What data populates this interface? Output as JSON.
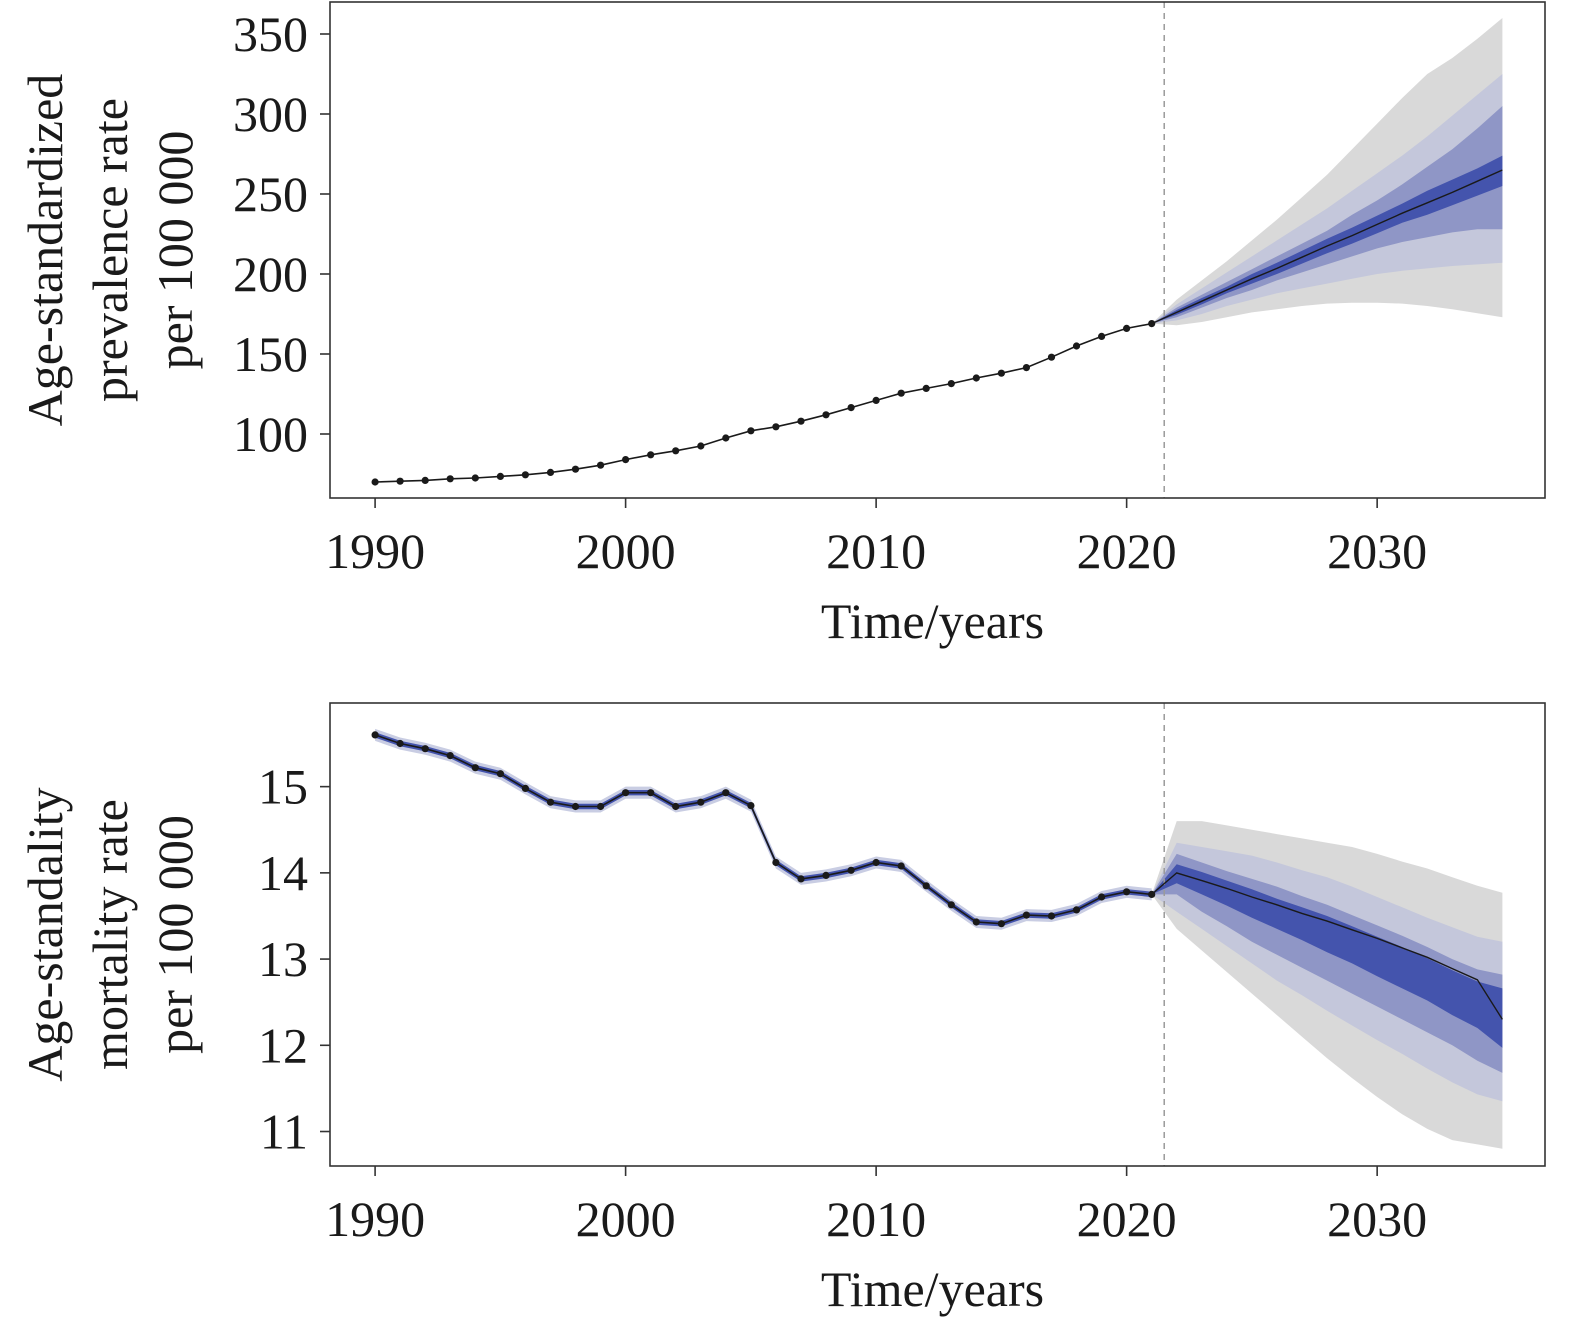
{
  "chart_data": [
    {
      "type": "line",
      "ylabel": [
        "Age-standardized",
        "prevalence rate",
        "per 100 000"
      ],
      "xlabel": "Time/years",
      "xlim": [
        1988.2,
        2036.7
      ],
      "ylim": [
        60,
        370
      ],
      "xticks": [
        1990,
        2000,
        2010,
        2020,
        2030
      ],
      "yticks": [
        100,
        150,
        200,
        250,
        300,
        350
      ],
      "grid": false,
      "split_year": 2021.5,
      "observed": {
        "x": [
          1990,
          1991,
          1992,
          1993,
          1994,
          1995,
          1996,
          1997,
          1998,
          1999,
          2000,
          2001,
          2002,
          2003,
          2004,
          2005,
          2006,
          2007,
          2008,
          2009,
          2010,
          2011,
          2012,
          2013,
          2014,
          2015,
          2016,
          2017,
          2018,
          2019,
          2020,
          2021
        ],
        "y": [
          70,
          70.5,
          71,
          72,
          72.5,
          73.5,
          74.5,
          76,
          78,
          80.5,
          84,
          87,
          89.5,
          92.5,
          97.5,
          102,
          104.5,
          108,
          112,
          116.5,
          121,
          125.5,
          128.5,
          131.5,
          135,
          138,
          141.5,
          148,
          155,
          161,
          166,
          169
        ]
      },
      "forecast": {
        "x": [
          2021,
          2022,
          2023,
          2024,
          2025,
          2026,
          2027,
          2028,
          2029,
          2030,
          2031,
          2032,
          2033,
          2034,
          2035
        ],
        "mean": [
          169,
          176,
          183,
          190,
          197,
          203.5,
          210.5,
          217.5,
          224,
          231,
          238,
          244.5,
          251,
          258,
          265
        ],
        "band_outer": {
          "low": [
            169,
            168,
            170,
            173,
            176,
            178,
            180,
            181.5,
            182,
            182,
            181.5,
            180,
            178,
            175.5,
            173
          ],
          "high": [
            169,
            184,
            196,
            208,
            221,
            234,
            248,
            262,
            278,
            294,
            310,
            325,
            335,
            347,
            360
          ]
        },
        "band_mid": {
          "low": [
            169,
            171,
            175,
            180,
            184,
            188,
            191,
            194,
            197,
            200,
            202,
            203.5,
            205,
            206,
            207
          ],
          "high": [
            169,
            181,
            191,
            201,
            211,
            221,
            231,
            241,
            252,
            263,
            274,
            286,
            299,
            312,
            325
          ]
        },
        "band_inner": {
          "low": [
            169,
            173,
            179,
            185,
            190,
            196,
            201,
            206,
            211,
            216,
            220,
            223,
            226,
            228,
            228
          ],
          "high": [
            169,
            179,
            187,
            195,
            203,
            211,
            219,
            227,
            237,
            246,
            256,
            267,
            278,
            291,
            305
          ]
        },
        "band_core": {
          "low": [
            169,
            174.5,
            181,
            188,
            194,
            200,
            206.5,
            213,
            219,
            225.5,
            232,
            237,
            243,
            249,
            255
          ],
          "high": [
            169,
            177.5,
            185,
            192,
            200,
            207,
            214.5,
            222,
            229,
            236.5,
            244,
            252,
            259,
            266,
            274
          ]
        }
      }
    },
    {
      "type": "line",
      "ylabel": [
        "Age-standality",
        "mortality rate",
        "per 100 000"
      ],
      "xlabel": "Time/years",
      "xlim": [
        1988.2,
        2036.7
      ],
      "ylim": [
        10.6,
        15.97
      ],
      "xticks": [
        1990,
        2000,
        2010,
        2020,
        2030
      ],
      "yticks": [
        11,
        12,
        13,
        14,
        15
      ],
      "grid": false,
      "split_year": 2021.5,
      "observed": {
        "x": [
          1990,
          1991,
          1992,
          1993,
          1994,
          1995,
          1996,
          1997,
          1998,
          1999,
          2000,
          2001,
          2002,
          2003,
          2004,
          2005,
          2006,
          2007,
          2008,
          2009,
          2010,
          2011,
          2012,
          2013,
          2014,
          2015,
          2016,
          2017,
          2018,
          2019,
          2020,
          2021
        ],
        "y": [
          15.6,
          15.5,
          15.44,
          15.36,
          15.22,
          15.15,
          14.98,
          14.82,
          14.77,
          14.77,
          14.93,
          14.93,
          14.77,
          14.82,
          14.93,
          14.78,
          14.12,
          13.93,
          13.97,
          14.03,
          14.12,
          14.08,
          13.85,
          13.63,
          13.43,
          13.41,
          13.51,
          13.5,
          13.57,
          13.72,
          13.78,
          13.75
        ]
      },
      "observed_band": 0.07,
      "forecast": {
        "x": [
          2021,
          2022,
          2023,
          2024,
          2025,
          2026,
          2027,
          2028,
          2029,
          2030,
          2031,
          2032,
          2033,
          2034,
          2035
        ],
        "mean": [
          13.75,
          14.0,
          13.91,
          13.82,
          13.72,
          13.63,
          13.53,
          13.44,
          13.34,
          13.24,
          13.13,
          13.02,
          12.89,
          12.76,
          12.3
        ],
        "band_outer": {
          "low": [
            13.75,
            13.35,
            13.1,
            12.85,
            12.6,
            12.35,
            12.1,
            11.85,
            11.62,
            11.4,
            11.2,
            11.03,
            10.9,
            10.85,
            10.8
          ],
          "high": [
            13.75,
            14.6,
            14.6,
            14.55,
            14.5,
            14.45,
            14.4,
            14.35,
            14.3,
            14.22,
            14.13,
            14.05,
            13.95,
            13.85,
            13.77
          ]
        },
        "band_mid": {
          "low": [
            13.75,
            13.55,
            13.35,
            13.15,
            12.95,
            12.75,
            12.58,
            12.4,
            12.23,
            12.06,
            11.9,
            11.73,
            11.57,
            11.43,
            11.35
          ],
          "high": [
            13.75,
            14.35,
            14.3,
            14.25,
            14.2,
            14.12,
            14.03,
            13.95,
            13.84,
            13.72,
            13.6,
            13.48,
            13.37,
            13.26,
            13.2
          ]
        },
        "band_inner": {
          "low": [
            13.75,
            13.75,
            13.55,
            13.38,
            13.2,
            13.05,
            12.9,
            12.75,
            12.6,
            12.45,
            12.3,
            12.15,
            12.0,
            11.82,
            11.68
          ],
          "high": [
            13.75,
            14.22,
            14.12,
            14.02,
            13.93,
            13.84,
            13.73,
            13.63,
            13.51,
            13.39,
            13.27,
            13.14,
            13.0,
            12.88,
            12.82
          ]
        },
        "band_core": {
          "low": [
            13.75,
            13.88,
            13.75,
            13.62,
            13.48,
            13.35,
            13.22,
            13.08,
            12.95,
            12.8,
            12.66,
            12.52,
            12.35,
            12.2,
            11.97
          ],
          "high": [
            13.75,
            14.1,
            14.01,
            13.91,
            13.81,
            13.7,
            13.6,
            13.5,
            13.38,
            13.26,
            13.14,
            13.01,
            12.87,
            12.74,
            12.66
          ]
        }
      }
    }
  ],
  "colors": {
    "band_outer": "#d9d9d9",
    "band_mid": "#c4c7db",
    "band_inner": "#8f96c6",
    "band_core": "#4454ad",
    "observed_band": "#c9cde3",
    "line": "#1a1a1a",
    "axis": "#333333",
    "divider": "#9a9a9a"
  }
}
